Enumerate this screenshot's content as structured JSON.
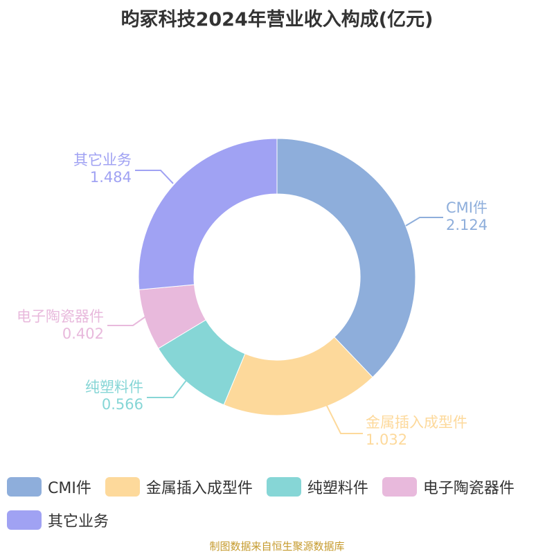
{
  "chart_data": {
    "type": "pie",
    "title": "昀冢科技2024年营业收入构成(亿元)",
    "donut": true,
    "legend_position": "bottom",
    "series": [
      {
        "name": "CMI件",
        "value": 2.124,
        "label": "2.124",
        "color": "#8eaedb"
      },
      {
        "name": "金属插入成型件",
        "value": 1.032,
        "label": "1.032",
        "color": "#fdd99b"
      },
      {
        "name": "纯塑料件",
        "value": 0.566,
        "label": "0.566",
        "color": "#86d6d6"
      },
      {
        "name": "电子陶瓷器件",
        "value": 0.402,
        "label": "0.402",
        "color": "#e8b9dc"
      },
      {
        "name": "其它业务",
        "value": 1.484,
        "label": "1.484",
        "color": "#a0a2f3"
      }
    ]
  },
  "source_note": "制图数据来自恒生聚源数据库"
}
